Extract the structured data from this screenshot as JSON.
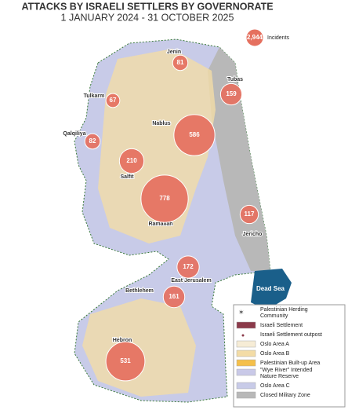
{
  "title": "ATTACKS BY ISRAELI SETTLERS BY GOVERNORATE",
  "subtitle": "1 JANUARY 2024 - 31 OCTOBER 2025",
  "total": {
    "value": 2944,
    "value_label": "2,944",
    "label": "Incidents"
  },
  "sea_label": "Dead Sea",
  "governorates": [
    {
      "name": "Jenin",
      "incidents": 81
    },
    {
      "name": "Tubas",
      "incidents": 159
    },
    {
      "name": "Tulkarm",
      "incidents": 67
    },
    {
      "name": "Nablus",
      "incidents": 586
    },
    {
      "name": "Qalqiliya",
      "incidents": 82
    },
    {
      "name": "Salfit",
      "incidents": 210
    },
    {
      "name": "Ramallah",
      "incidents": 778
    },
    {
      "name": "Jericho",
      "incidents": 117
    },
    {
      "name": "East Jerusalem",
      "incidents": 172
    },
    {
      "name": "Bethlehem",
      "incidents": 161
    },
    {
      "name": "Hebron",
      "incidents": 531
    }
  ],
  "legend": [
    {
      "label": "Palestinian Herding Community",
      "color": "#555555"
    },
    {
      "label": "Israeli Settlement",
      "color": "#8b3a4a"
    },
    {
      "label": "Israeli Settlement outpost",
      "color": "#8b3a4a"
    },
    {
      "label": "Oslo Area A",
      "color": "#f6ecd6"
    },
    {
      "label": "Oslo Area B",
      "color": "#f3dca6"
    },
    {
      "label": "Palestinian Built-up Area",
      "color": "#f5c04a"
    },
    {
      "label": "\"Wye River\" Intended Nature Reserve",
      "color": "#c9c9e8"
    },
    {
      "label": "Oslo Area C",
      "color": "#c8cbe8"
    },
    {
      "label": "Closed Military Zone",
      "color": "#b8b8b8"
    }
  ]
}
